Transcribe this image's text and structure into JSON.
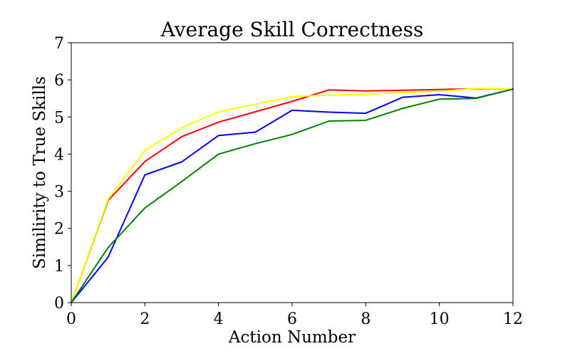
{
  "chart_data": {
    "type": "line",
    "title": "Average Skill Correctness",
    "xlabel": "Action Number",
    "ylabel": "Similirity to True Skills",
    "xlim": [
      0,
      12
    ],
    "ylim": [
      0,
      7
    ],
    "xticks": [
      0,
      2,
      4,
      6,
      8,
      10,
      12
    ],
    "yticks": [
      0,
      1,
      2,
      3,
      4,
      5,
      6,
      7
    ],
    "grid": false,
    "x": [
      0,
      1,
      2,
      3,
      4,
      5,
      6,
      7,
      8,
      9,
      10,
      11,
      12
    ],
    "series": [
      {
        "color": "#ff0000",
        "values": [
          0,
          2.75,
          3.8,
          4.47,
          4.86,
          5.14,
          5.42,
          5.73,
          5.7,
          5.72,
          5.74,
          5.76,
          5.75
        ]
      },
      {
        "color": "#ffff00",
        "values": [
          0,
          2.78,
          4.1,
          4.71,
          5.14,
          5.34,
          5.55,
          5.59,
          5.61,
          5.66,
          5.69,
          5.77,
          5.75
        ]
      },
      {
        "color": "#0000ff",
        "values": [
          0,
          1.22,
          3.44,
          3.79,
          4.5,
          4.59,
          5.18,
          5.13,
          5.1,
          5.53,
          5.6,
          5.51,
          5.75
        ]
      },
      {
        "color": "#008000",
        "values": [
          0,
          1.48,
          2.55,
          3.26,
          4.0,
          4.28,
          4.53,
          4.89,
          4.91,
          5.23,
          5.48,
          5.5,
          5.75
        ]
      }
    ]
  }
}
